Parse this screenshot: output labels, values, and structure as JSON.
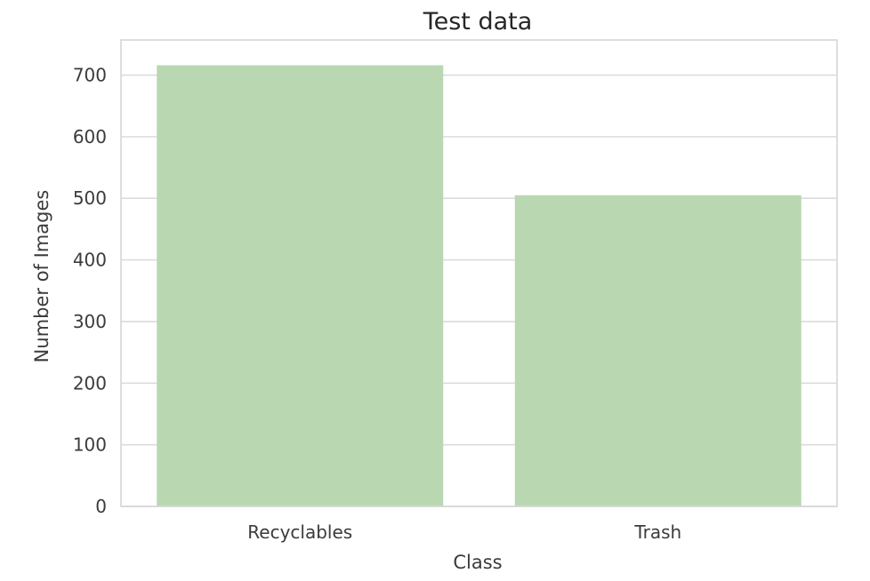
{
  "chart_data": {
    "type": "bar",
    "title": "Test data",
    "xlabel": "Class",
    "ylabel": "Number of Images",
    "categories": [
      "Recyclables",
      "Trash"
    ],
    "values": [
      716,
      505
    ],
    "ylim": [
      0,
      757
    ],
    "yticks": [
      0,
      100,
      200,
      300,
      400,
      500,
      600,
      700
    ],
    "grid": "horizontal",
    "colors": {
      "bar": "#b9d8b2",
      "grid": "#dcdcdc",
      "frame": "#d6d6d6",
      "text": "#3b3b3b"
    }
  }
}
